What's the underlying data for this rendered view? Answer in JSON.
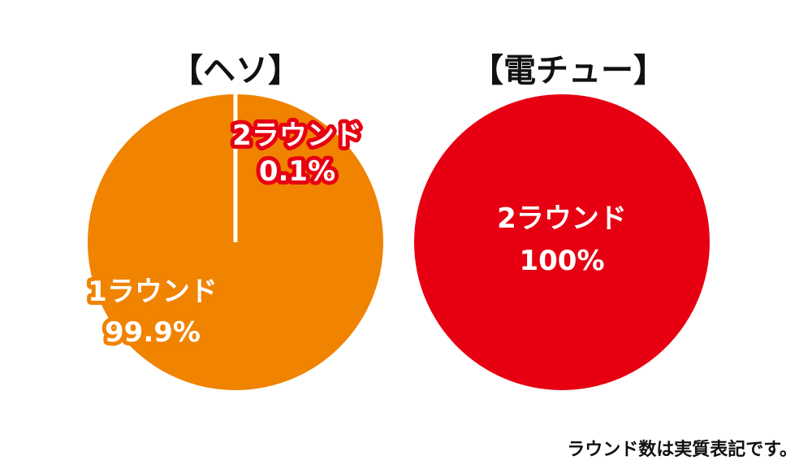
{
  "chart_data": [
    {
      "type": "pie",
      "title": "【ヘソ】",
      "slices": [
        {
          "label": "1ラウンド",
          "value": 99.9,
          "value_text": "99.9%",
          "color": "#f08300"
        },
        {
          "label": "2ラウンド",
          "value": 0.1,
          "value_text": "0.1%",
          "color": "#e60012"
        }
      ]
    },
    {
      "type": "pie",
      "title": "【電チュー】",
      "slices": [
        {
          "label": "2ラウンド",
          "value": 100,
          "value_text": "100%",
          "color": "#e60012"
        }
      ]
    }
  ],
  "footnote": "ラウンド数は実質表記です。",
  "colors": {
    "orange": "#f08300",
    "red": "#e60012",
    "divider": "#ffffff"
  }
}
